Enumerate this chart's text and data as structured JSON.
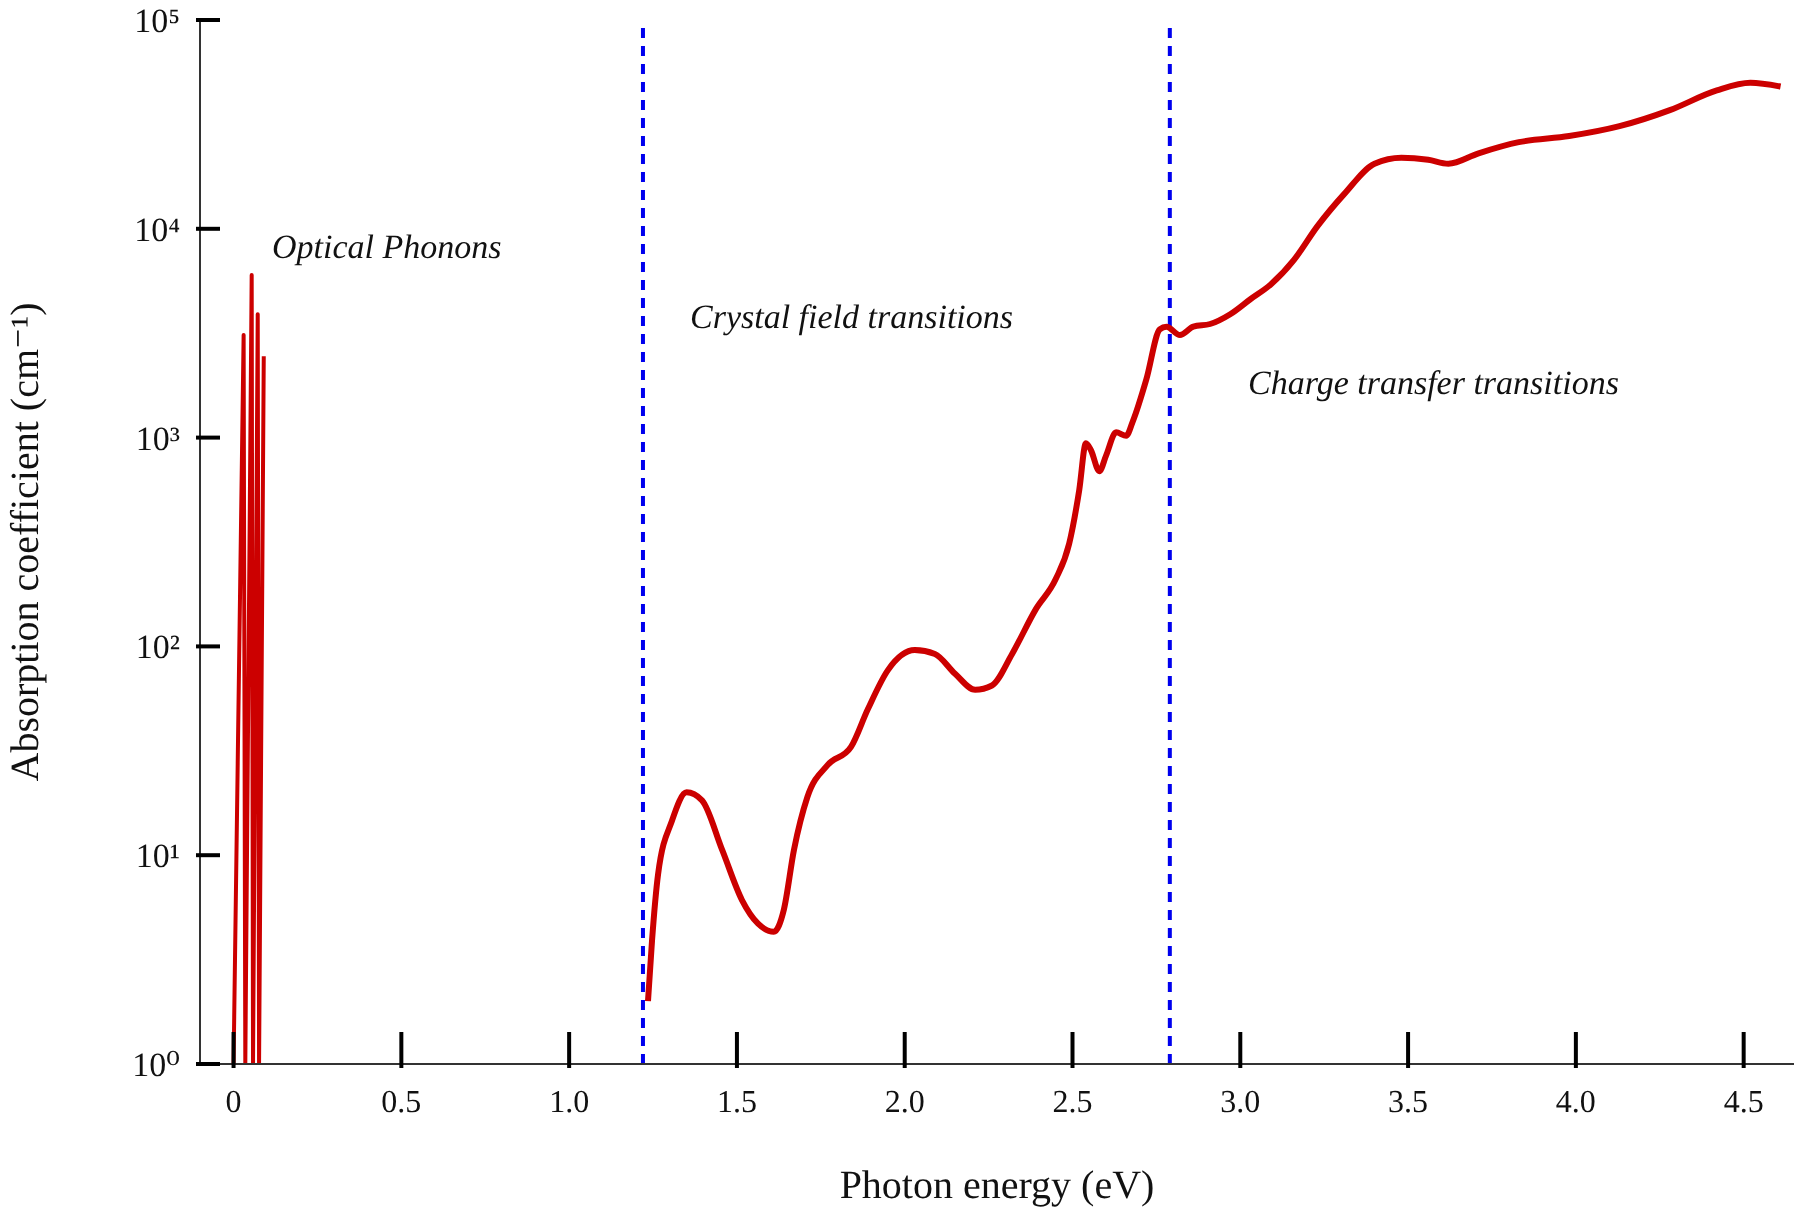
{
  "chart_data": {
    "type": "line",
    "xlabel": "Photon energy (eV)",
    "ylabel": "Absorption coefficient (cm⁻¹)",
    "log": "y",
    "marker": "none",
    "line_style": "solid",
    "xlim": [
      -0.1,
      4.65
    ],
    "xticks": [
      0,
      0.5,
      {
        "value": 1,
        "label": "1.0"
      },
      1.5,
      {
        "value": 2,
        "label": "2.0"
      },
      2.5,
      {
        "value": 3,
        "label": "3.0"
      },
      3.5,
      {
        "value": 4,
        "label": "4.0"
      },
      4.5
    ],
    "ylim": [
      1,
      100000
    ],
    "yticks": [
      {
        "value": 1,
        "label": "10⁰"
      },
      {
        "value": 10,
        "label": "10¹"
      },
      {
        "value": 100,
        "label": "10²"
      },
      {
        "value": 1000,
        "label": "10³"
      },
      {
        "value": 10000,
        "label": "10⁴"
      },
      {
        "value": 100000,
        "label": "10⁵"
      }
    ],
    "series": [
      {
        "color": "#cc0000",
        "x": [
          0.0,
          0.03,
          0.035,
          0.054,
          0.058,
          0.072,
          0.076,
          0.09
        ],
        "values": [
          1,
          3100,
          1,
          6000,
          1,
          3900,
          1,
          2450
        ]
      },
      {
        "color": "#cc0000",
        "x": [
          1.235,
          1.247,
          1.265,
          1.307,
          1.35,
          1.396,
          1.456,
          1.515,
          1.563,
          1.61,
          1.64,
          1.67,
          1.71,
          1.77,
          1.84,
          1.89,
          1.95,
          2.03,
          2.09,
          2.15,
          2.21,
          2.26,
          2.32,
          2.39,
          2.45,
          2.49,
          2.52,
          2.54,
          2.555,
          2.58,
          2.6,
          2.63,
          2.66,
          2.68,
          2.72,
          2.76,
          2.78,
          2.82,
          2.86,
          2.91,
          2.97,
          3.03,
          3.09,
          3.16,
          3.23,
          3.31,
          3.4,
          3.48,
          3.56,
          3.62,
          3.71,
          3.83,
          3.98,
          4.13,
          4.28,
          4.42,
          4.52,
          4.61
        ],
        "values": [
          2.0,
          3.9,
          8.1,
          14.7,
          20,
          18.3,
          10.6,
          6.1,
          4.7,
          4.3,
          5.5,
          10.6,
          19,
          27,
          33,
          50,
          77,
          96,
          92,
          74,
          62,
          65,
          92,
          150,
          210,
          310,
          560,
          940,
          870,
          690,
          820,
          1060,
          1020,
          1200,
          1900,
          3300,
          3400,
          3100,
          3400,
          3500,
          3900,
          4600,
          5400,
          7100,
          10300,
          14700,
          20500,
          21900,
          21400,
          20500,
          23000,
          26000,
          27800,
          31000,
          37000,
          46000,
          50000,
          48000
        ]
      }
    ],
    "ref_lines": [
      {
        "axis": "x",
        "value": 1.22,
        "color": "#0000ee",
        "line_style": "dashed"
      },
      {
        "axis": "x",
        "value": 2.79,
        "color": "#0000ee",
        "line_style": "dashed"
      }
    ],
    "annotations": [
      "Optical Phonons",
      "Crystal field transitions",
      "Charge transfer transitions"
    ]
  }
}
